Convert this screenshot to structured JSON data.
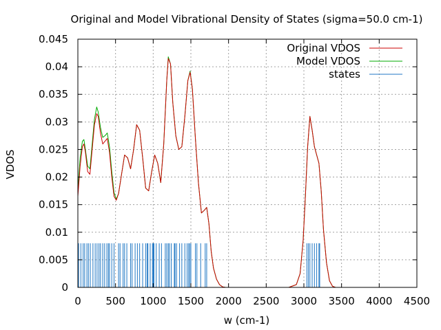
{
  "colors": {
    "original": "#cc0000",
    "model": "#00aa00",
    "states": "#1f77c4",
    "grid": "#a0a0a0",
    "axis": "#000000"
  },
  "chart_data": {
    "type": "line",
    "title": "Original and Model Vibrational Density of States (sigma=50.0 cm-1)",
    "xlabel": "w (cm-1)",
    "ylabel": "VDOS",
    "xlim": [
      0,
      4500
    ],
    "ylim": [
      0,
      0.045
    ],
    "xticks": [
      0,
      500,
      1000,
      1500,
      2000,
      2500,
      3000,
      3500,
      4000,
      4500
    ],
    "yticks": [
      0,
      0.005,
      0.01,
      0.015,
      0.02,
      0.025,
      0.03,
      0.035,
      0.04,
      0.045
    ],
    "xtick_labels": [
      "0",
      "500",
      "1000",
      "1500",
      "2000",
      "2500",
      "3000",
      "3500",
      "4000",
      "4500"
    ],
    "ytick_labels": [
      "0",
      "0.005",
      "0.01",
      "0.015",
      "0.02",
      "0.025",
      "0.03",
      "0.035",
      "0.04",
      "0.045"
    ],
    "grid": true,
    "legend_position": "top-right",
    "series": [
      {
        "name": "Original VDOS",
        "style": "line",
        "x": [
          0,
          30,
          60,
          80,
          100,
          130,
          160,
          190,
          220,
          250,
          270,
          300,
          330,
          360,
          390,
          420,
          450,
          480,
          510,
          540,
          580,
          620,
          660,
          700,
          740,
          780,
          820,
          860,
          900,
          940,
          980,
          1020,
          1060,
          1100,
          1140,
          1180,
          1200,
          1230,
          1260,
          1300,
          1340,
          1380,
          1420,
          1460,
          1490,
          1520,
          1560,
          1600,
          1640,
          1680,
          1710,
          1740,
          1770,
          1800,
          1840,
          1880,
          1920,
          1960,
          2000,
          2100,
          2200,
          2500,
          2800,
          2900,
          2950,
          2990,
          3020,
          3050,
          3080,
          3110,
          3140,
          3170,
          3200,
          3230,
          3260,
          3300,
          3340,
          3380,
          3420,
          3500,
          4000,
          4500
        ],
        "y": [
          0.0165,
          0.022,
          0.0255,
          0.026,
          0.0245,
          0.021,
          0.0205,
          0.025,
          0.0295,
          0.0315,
          0.031,
          0.028,
          0.026,
          0.0265,
          0.027,
          0.0245,
          0.02,
          0.0165,
          0.0158,
          0.017,
          0.0205,
          0.024,
          0.0235,
          0.0215,
          0.025,
          0.0295,
          0.0285,
          0.0235,
          0.018,
          0.0175,
          0.021,
          0.024,
          0.0225,
          0.019,
          0.026,
          0.0375,
          0.0415,
          0.0405,
          0.0335,
          0.0275,
          0.025,
          0.0255,
          0.031,
          0.0375,
          0.039,
          0.036,
          0.027,
          0.019,
          0.0135,
          0.014,
          0.0145,
          0.0115,
          0.0065,
          0.0035,
          0.0015,
          0.0005,
          0.0001,
          0.0,
          0.0,
          0.0,
          0.0,
          0.0,
          0.0,
          0.0005,
          0.0025,
          0.0085,
          0.0165,
          0.0255,
          0.031,
          0.0285,
          0.0255,
          0.024,
          0.0225,
          0.0175,
          0.0105,
          0.0045,
          0.0012,
          0.0002,
          0.0,
          0.0,
          0.0,
          0.0
        ]
      },
      {
        "name": "Model VDOS",
        "style": "line",
        "x": [
          0,
          30,
          60,
          80,
          100,
          130,
          160,
          190,
          220,
          250,
          270,
          300,
          330,
          360,
          390,
          420,
          450,
          480,
          510,
          540,
          580,
          620,
          660,
          700,
          740,
          780,
          820,
          860,
          900,
          940,
          980,
          1020,
          1060,
          1100,
          1140,
          1180,
          1200,
          1230,
          1260,
          1300,
          1340,
          1380,
          1420,
          1460,
          1490,
          1520,
          1560,
          1600,
          1640,
          1680,
          1710,
          1740,
          1770,
          1800,
          1840,
          1880,
          1920,
          1960,
          2000,
          2100,
          2200,
          2500,
          2800,
          2900,
          2950,
          2990,
          3020,
          3050,
          3080,
          3110,
          3140,
          3170,
          3200,
          3230,
          3260,
          3300,
          3340,
          3380,
          3420,
          3500,
          4000,
          4500
        ],
        "y": [
          0.0175,
          0.0235,
          0.0265,
          0.0268,
          0.025,
          0.022,
          0.0215,
          0.026,
          0.0305,
          0.0327,
          0.0318,
          0.029,
          0.0272,
          0.0275,
          0.028,
          0.0255,
          0.021,
          0.0172,
          0.016,
          0.017,
          0.0205,
          0.024,
          0.0235,
          0.0215,
          0.025,
          0.0295,
          0.0285,
          0.0235,
          0.018,
          0.0175,
          0.021,
          0.024,
          0.0225,
          0.019,
          0.026,
          0.0375,
          0.0418,
          0.0405,
          0.0335,
          0.0275,
          0.025,
          0.0255,
          0.031,
          0.0375,
          0.0392,
          0.036,
          0.027,
          0.019,
          0.0135,
          0.014,
          0.0145,
          0.0115,
          0.0065,
          0.0035,
          0.0015,
          0.0005,
          0.0001,
          0.0,
          0.0,
          0.0,
          0.0,
          0.0,
          0.0,
          0.0005,
          0.0025,
          0.0085,
          0.0165,
          0.0255,
          0.031,
          0.0285,
          0.0255,
          0.024,
          0.0225,
          0.0175,
          0.0105,
          0.0045,
          0.0012,
          0.0002,
          0.0,
          0.0,
          0.0,
          0.0
        ]
      },
      {
        "name": "states",
        "style": "impulses",
        "height": 0.008,
        "x": [
          10,
          40,
          70,
          90,
          120,
          140,
          165,
          200,
          230,
          255,
          280,
          300,
          330,
          355,
          385,
          405,
          420,
          450,
          480,
          540,
          560,
          600,
          620,
          650,
          700,
          720,
          760,
          790,
          820,
          860,
          900,
          920,
          930,
          960,
          990,
          1000,
          1005,
          1010,
          1040,
          1080,
          1110,
          1160,
          1180,
          1200,
          1215,
          1240,
          1280,
          1290,
          1310,
          1350,
          1380,
          1420,
          1450,
          1470,
          1485,
          1500,
          1560,
          1580,
          1630,
          1690,
          1710,
          3040,
          3060,
          3080,
          3110,
          3140,
          3170,
          3200,
          3210
        ]
      }
    ]
  }
}
